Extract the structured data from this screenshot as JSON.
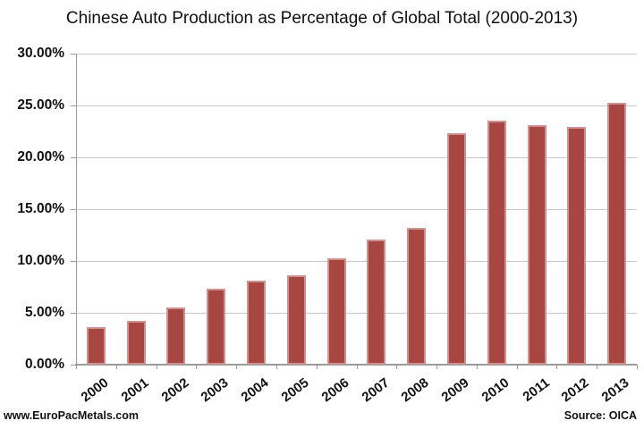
{
  "title": "Chinese Auto Production as Percentage of Global Total (2000-2013)",
  "footer": {
    "left": "www.EuroPacMetals.com",
    "right": "Source: OICA"
  },
  "chart_data": {
    "type": "bar",
    "title": "Chinese Auto Production as Percentage of Global Total (2000-2013)",
    "xlabel": "",
    "ylabel": "",
    "categories": [
      "2000",
      "2001",
      "2002",
      "2003",
      "2004",
      "2005",
      "2006",
      "2007",
      "2008",
      "2009",
      "2010",
      "2011",
      "2012",
      "2013"
    ],
    "values": [
      3.6,
      4.2,
      5.5,
      7.3,
      8.1,
      8.6,
      10.3,
      12.1,
      13.2,
      22.3,
      23.5,
      23.1,
      22.9,
      25.3
    ],
    "unit": "%",
    "ylim": [
      0,
      30
    ],
    "ytick_step": 5,
    "ytick_labels": [
      "0.00%",
      "5.00%",
      "10.00%",
      "15.00%",
      "20.00%",
      "25.00%",
      "30.00%"
    ],
    "grid": true,
    "legend_position": "none",
    "bar_color": "#a84641",
    "bar_edge_color": "#cf9a96",
    "gridline_color": "#c9c9c9",
    "axis_color": "#9b9b9b",
    "text_color": "#111111"
  }
}
